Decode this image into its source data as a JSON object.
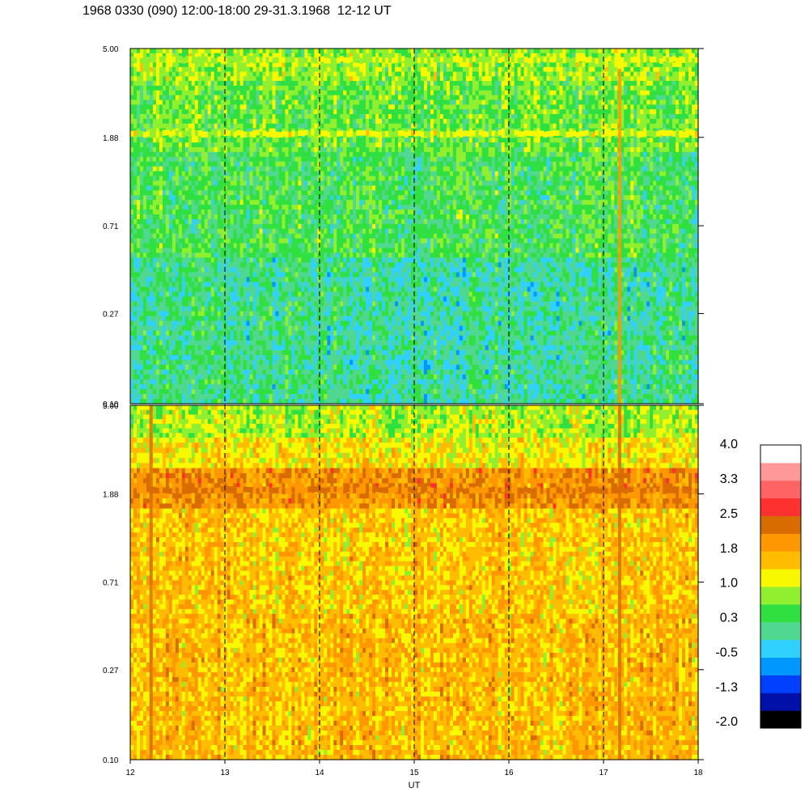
{
  "title": "1968 0330 (090) 12:00-18:00 29-31.3.1968  12-12 UT",
  "chart_data": {
    "type": "heatmap",
    "title": "1968 0330 (090) 12:00-18:00 29-31.3.1968  12-12 UT",
    "xlabel": "UT",
    "xlim": [
      12,
      18
    ],
    "x_ticks": [
      12,
      13,
      14,
      15,
      16,
      17,
      18
    ],
    "x_tick_labels": [
      "12",
      "13",
      "14",
      "15",
      "16",
      "17",
      "18"
    ],
    "panels": [
      {
        "name": "upper",
        "y_scale": "log",
        "ylim": [
          0.1,
          5.0
        ],
        "y_ticks": [
          0.1,
          0.27,
          0.71,
          1.88,
          5.0
        ],
        "y_tick_labels": [
          "0.10",
          "0.27",
          "0.71",
          "1.88",
          "5.00"
        ],
        "bands": [
          {
            "y": [
              3.5,
              5.0
            ],
            "level": 0.8
          },
          {
            "y": [
              1.6,
              3.5
            ],
            "level": 0.6
          },
          {
            "y": [
              0.5,
              1.6
            ],
            "level": 0.4
          },
          {
            "y": [
              0.1,
              0.5
            ],
            "level": 0.1
          }
        ],
        "features": [
          {
            "type": "band",
            "y": 4.4,
            "level": 1.0
          },
          {
            "type": "band",
            "y": 1.95,
            "level": 1.1
          },
          {
            "type": "vertical_streak",
            "x": 17.17,
            "y": [
              0.1,
              4.0
            ],
            "level": 1.9
          }
        ]
      },
      {
        "name": "lower",
        "y_scale": "log",
        "ylim": [
          0.1,
          5.0
        ],
        "y_ticks": [
          0.1,
          0.27,
          0.71,
          1.88,
          5.0
        ],
        "y_tick_labels": [
          "0.10",
          "0.27",
          "0.71",
          "1.88",
          "5.00"
        ],
        "bands": [
          {
            "y": [
              3.5,
              5.0
            ],
            "level": 0.9
          },
          {
            "y": [
              2.5,
              3.5
            ],
            "level": 1.3
          },
          {
            "y": [
              1.6,
              2.5
            ],
            "level": 2.0
          },
          {
            "y": [
              0.5,
              1.6
            ],
            "level": 1.5
          },
          {
            "y": [
              0.1,
              0.5
            ],
            "level": 1.6
          }
        ],
        "features": [
          {
            "type": "band",
            "y": 1.95,
            "level": 2.2
          },
          {
            "type": "vertical_streak",
            "x": 12.22,
            "y": [
              0.1,
              5.0
            ],
            "level": 2.4
          },
          {
            "type": "vertical_streak",
            "x": 17.17,
            "y": [
              0.1,
              5.0
            ],
            "level": 2.3
          }
        ]
      }
    ],
    "dashed_lines_x": [
      13,
      14,
      15,
      16,
      17
    ],
    "colorbar": {
      "range": [
        -2.0,
        4.0
      ],
      "tick_labels": [
        "4.0",
        "3.3",
        "2.5",
        "1.8",
        "1.0",
        "0.3",
        "-0.5",
        "-1.3",
        "-2.0"
      ],
      "colors": [
        "#000000",
        "#0010a8",
        "#0040ff",
        "#0098ff",
        "#30d0ff",
        "#50d890",
        "#30e040",
        "#90f030",
        "#f8f800",
        "#ffbc00",
        "#ff9800",
        "#d86c00",
        "#ff3030",
        "#ff6464",
        "#ff9898",
        "#ffffff"
      ]
    }
  }
}
